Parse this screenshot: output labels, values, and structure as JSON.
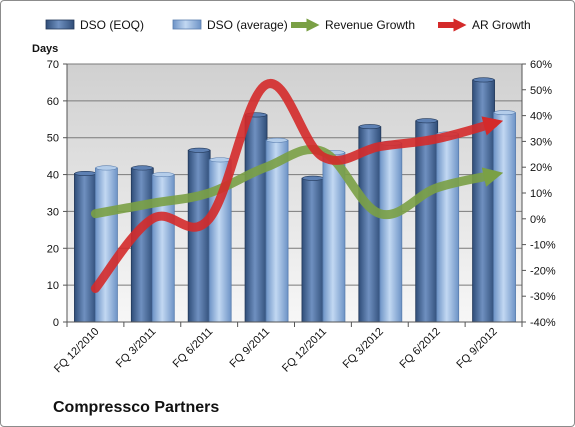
{
  "chart_data": {
    "type": "bar",
    "title": "Compressco Partners",
    "ylabel": "Days",
    "categories": [
      "FQ 12/2010",
      "FQ 3/2011",
      "FQ 6/2011",
      "FQ 9/2011",
      "FQ 12/2011",
      "FQ 3/2012",
      "FQ 6/2012",
      "FQ 9/2012"
    ],
    "ylim": [
      0,
      70
    ],
    "y_ticks": [
      0,
      10,
      20,
      30,
      40,
      50,
      60,
      70
    ],
    "y2lim": [
      -40,
      60
    ],
    "y2_ticks": [
      "-40%",
      "-30%",
      "-20%",
      "-10%",
      "0%",
      "10%",
      "20%",
      "30%",
      "40%",
      "50%",
      "60%"
    ],
    "grid": true,
    "legend_position": "top",
    "series": [
      {
        "name": "DSO (EOQ)",
        "type": "bar",
        "axis": "left",
        "color": "#4a6d9c",
        "values": [
          40.3,
          41.8,
          46.6,
          56.2,
          39.0,
          53.0,
          54.6,
          65.7
        ]
      },
      {
        "name": "DSO (average)",
        "type": "bar",
        "axis": "left",
        "color": "#8fb4e0",
        "values": [
          41.8,
          40.0,
          44.0,
          49.3,
          46.0,
          48.5,
          51.0,
          56.8
        ]
      },
      {
        "name": "Revenue Growth",
        "type": "line",
        "axis": "right",
        "unit": "%",
        "color": "#7aa045",
        "values": [
          2,
          6,
          10,
          20,
          26,
          2,
          12,
          17
        ]
      },
      {
        "name": "AR Growth",
        "type": "line",
        "axis": "right",
        "unit": "%",
        "color": "#d42a2a",
        "values": [
          -27,
          0,
          0,
          52,
          24,
          28,
          31,
          37
        ]
      }
    ]
  }
}
